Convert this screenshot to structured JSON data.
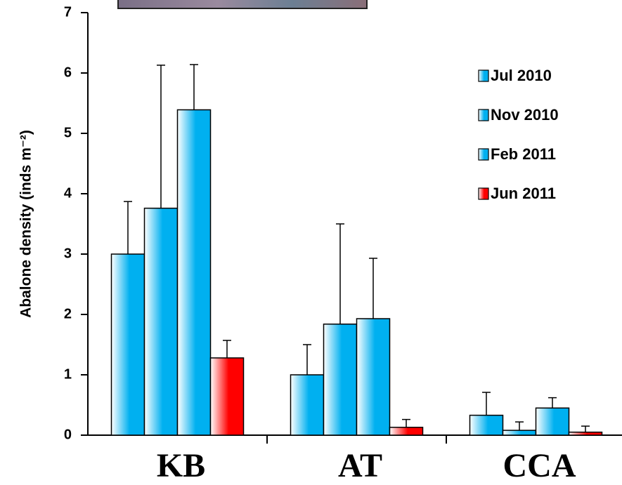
{
  "chart_data": {
    "type": "bar",
    "y_label": "Abalone density (inds m⁻²)",
    "categories": [
      "KB",
      "AT",
      "CCA"
    ],
    "series": [
      {
        "name": "Jul 2010",
        "color": "#00b0f0",
        "values": [
          3.0,
          1.0,
          0.33
        ],
        "errors": [
          0.87,
          0.5,
          0.38
        ]
      },
      {
        "name": "Nov 2010",
        "color": "#00b0f0",
        "values": [
          3.76,
          1.84,
          0.08
        ],
        "errors": [
          2.37,
          1.66,
          0.14
        ]
      },
      {
        "name": "Feb 2011",
        "color": "#00b0f0",
        "values": [
          5.39,
          1.93,
          0.45
        ],
        "errors": [
          0.75,
          1.0,
          0.17
        ]
      },
      {
        "name": "Jun 2011",
        "color": "#ff0000",
        "values": [
          1.28,
          0.13,
          0.05
        ],
        "errors": [
          0.29,
          0.13,
          0.1
        ]
      }
    ],
    "ylim": [
      0,
      7
    ],
    "yticks": [
      0,
      1,
      2,
      3,
      4,
      5,
      6,
      7
    ],
    "legend": "top-right"
  }
}
